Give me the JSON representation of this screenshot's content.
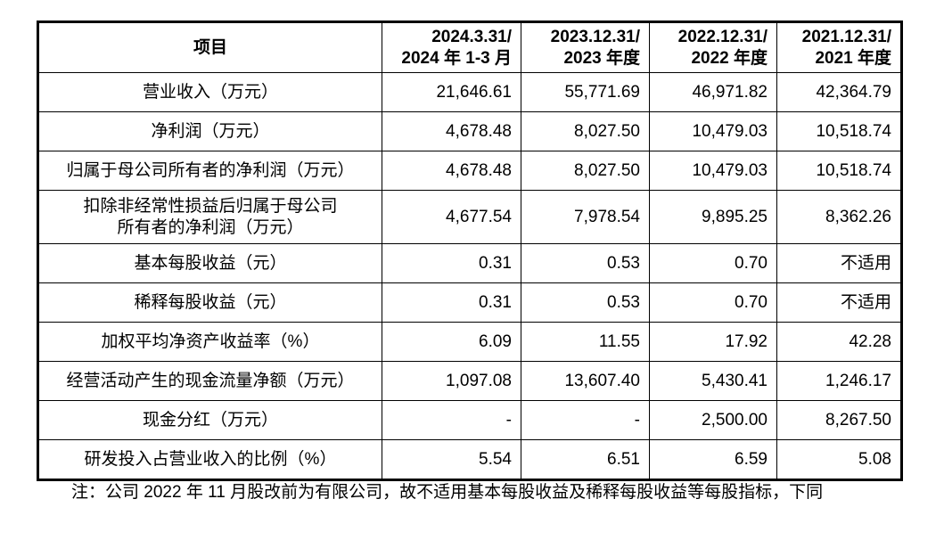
{
  "table": {
    "headers": [
      {
        "line1": "项目",
        "line2": ""
      },
      {
        "line1": "2024.3.31/",
        "line2": "2024 年 1-3 月"
      },
      {
        "line1": "2023.12.31/",
        "line2": "2023 年度"
      },
      {
        "line1": "2022.12.31/",
        "line2": "2022 年度"
      },
      {
        "line1": "2021.12.31/",
        "line2": "2021 年度"
      }
    ],
    "rows": [
      {
        "label": "营业收入（万元）",
        "values": [
          "21,646.61",
          "55,771.69",
          "46,971.82",
          "42,364.79"
        ]
      },
      {
        "label": "净利润（万元）",
        "values": [
          "4,678.48",
          "8,027.50",
          "10,479.03",
          "10,518.74"
        ]
      },
      {
        "label": "归属于母公司所有者的净利润（万元）",
        "values": [
          "4,678.48",
          "8,027.50",
          "10,479.03",
          "10,518.74"
        ]
      },
      {
        "label": "扣除非经常性损益后归属于母公司",
        "label2": "所有者的净利润（万元）",
        "values": [
          "4,677.54",
          "7,978.54",
          "9,895.25",
          "8,362.26"
        ]
      },
      {
        "label": "基本每股收益（元）",
        "values": [
          "0.31",
          "0.53",
          "0.70",
          "不适用"
        ]
      },
      {
        "label": "稀释每股收益（元）",
        "values": [
          "0.31",
          "0.53",
          "0.70",
          "不适用"
        ]
      },
      {
        "label": "加权平均净资产收益率（%）",
        "values": [
          "6.09",
          "11.55",
          "17.92",
          "42.28"
        ]
      },
      {
        "label": "经营活动产生的现金流量净额（万元）",
        "values": [
          "1,097.08",
          "13,607.40",
          "5,430.41",
          "1,246.17"
        ]
      },
      {
        "label": "现金分红（万元）",
        "values": [
          "-",
          "-",
          "2,500.00",
          "8,267.50"
        ]
      },
      {
        "label": "研发投入占营业收入的比例（%）",
        "values": [
          "5.54",
          "6.51",
          "6.59",
          "5.08"
        ]
      }
    ]
  },
  "note": "注：公司 2022 年 11 月股改前为有限公司，故不适用基本每股收益及稀释每股收益等每股指标，下同"
}
